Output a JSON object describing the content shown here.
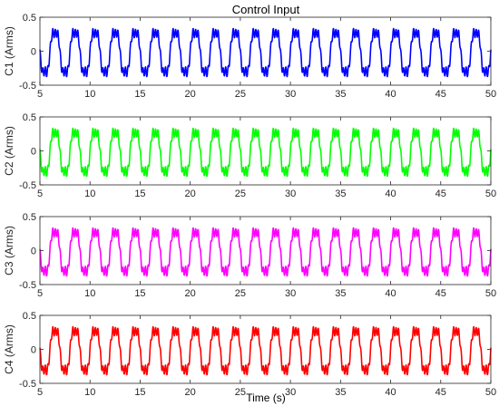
{
  "figure": {
    "title": "Control Input",
    "xlabel": "Time (s)"
  },
  "chart_data": [
    {
      "type": "line",
      "ylabel": "C1 (Arms)",
      "xlim": [
        5,
        50
      ],
      "ylim": [
        -0.5,
        0.5
      ],
      "xticks": [
        "5",
        "10",
        "15",
        "20",
        "25",
        "30",
        "35",
        "40",
        "45",
        "50"
      ],
      "yticks": [
        "0.5",
        "0",
        "-0.5"
      ],
      "series": [
        {
          "color": "#0000ff",
          "fundamental_hz": 0.5,
          "amplitude_peak": 0.35,
          "amplitude_trough": -0.4,
          "ripple_hz": 4,
          "ripple_amplitude": 0.07
        }
      ]
    },
    {
      "type": "line",
      "ylabel": "C2 (Arms)",
      "xlim": [
        5,
        50
      ],
      "ylim": [
        -0.5,
        0.5
      ],
      "xticks": [
        "5",
        "10",
        "15",
        "20",
        "25",
        "30",
        "35",
        "40",
        "45",
        "50"
      ],
      "yticks": [
        "0.5",
        "0",
        "-0.5"
      ],
      "series": [
        {
          "color": "#00ff00",
          "fundamental_hz": 0.5,
          "amplitude_peak": 0.35,
          "amplitude_trough": -0.4,
          "ripple_hz": 4,
          "ripple_amplitude": 0.07
        }
      ]
    },
    {
      "type": "line",
      "ylabel": "C3 (Arms)",
      "xlim": [
        5,
        50
      ],
      "ylim": [
        -0.5,
        0.5
      ],
      "xticks": [
        "5",
        "10",
        "15",
        "20",
        "25",
        "30",
        "35",
        "40",
        "45",
        "50"
      ],
      "yticks": [
        "0.5",
        "0",
        "-0.5"
      ],
      "series": [
        {
          "color": "#ff00ff",
          "fundamental_hz": 0.5,
          "amplitude_peak": 0.35,
          "amplitude_trough": -0.4,
          "ripple_hz": 4,
          "ripple_amplitude": 0.07
        }
      ]
    },
    {
      "type": "line",
      "ylabel": "C4 (Arms)",
      "xlim": [
        5,
        50
      ],
      "ylim": [
        -0.5,
        0.5
      ],
      "xticks": [
        "5",
        "10",
        "15",
        "20",
        "25",
        "30",
        "35",
        "40",
        "45",
        "50"
      ],
      "yticks": [
        "0.5",
        "0",
        "-0.5"
      ],
      "series": [
        {
          "color": "#ff0000",
          "fundamental_hz": 0.5,
          "amplitude_peak": 0.35,
          "amplitude_trough": -0.4,
          "ripple_hz": 4,
          "ripple_amplitude": 0.07
        }
      ]
    }
  ]
}
